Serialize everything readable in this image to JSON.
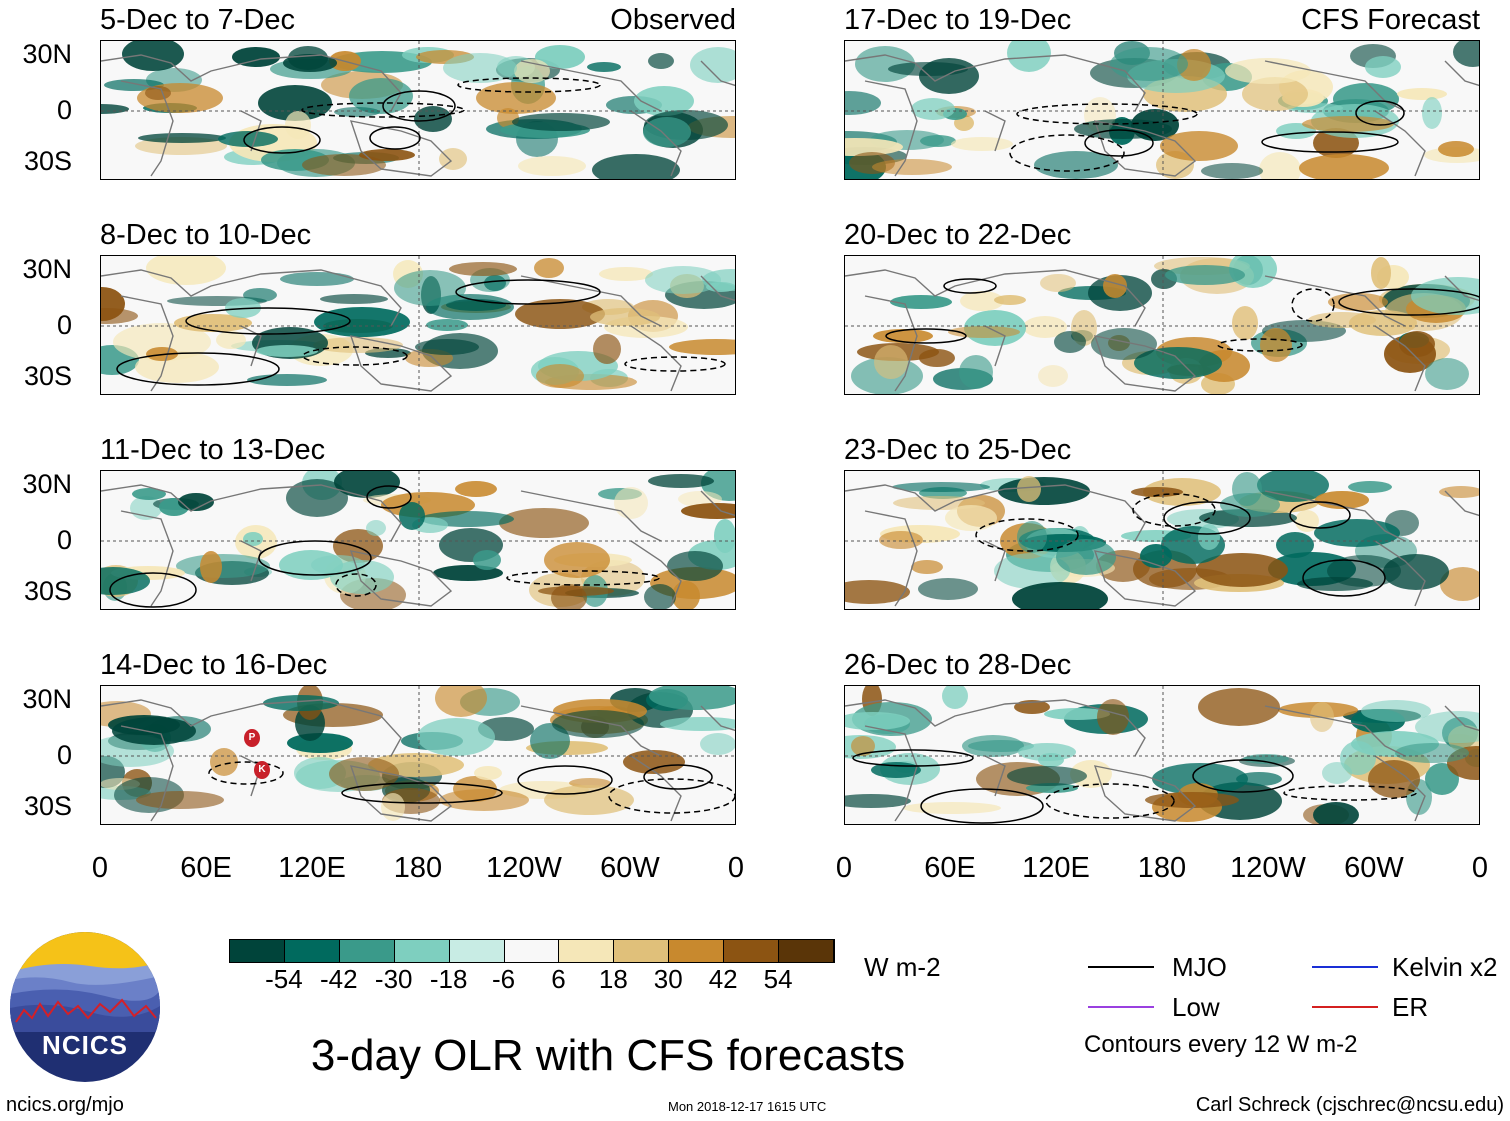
{
  "panels_left": [
    {
      "title": "5-Dec to 7-Dec",
      "tag": "Observed"
    },
    {
      "title": "8-Dec to 10-Dec",
      "tag": ""
    },
    {
      "title": "11-Dec to 13-Dec",
      "tag": ""
    },
    {
      "title": "14-Dec to 16-Dec",
      "tag": ""
    }
  ],
  "panels_right": [
    {
      "title": "17-Dec to 19-Dec",
      "tag": "CFS Forecast"
    },
    {
      "title": "20-Dec to 22-Dec",
      "tag": ""
    },
    {
      "title": "23-Dec to 25-Dec",
      "tag": ""
    },
    {
      "title": "26-Dec to 28-Dec",
      "tag": ""
    }
  ],
  "lat_labels": [
    "30N",
    "0",
    "30S"
  ],
  "lon_labels": [
    "0",
    "60E",
    "120E",
    "180",
    "120W",
    "60W",
    "0"
  ],
  "colorbar": {
    "unit": "W m-2",
    "labels": [
      "-54",
      "-42",
      "-30",
      "-18",
      "-6",
      "6",
      "18",
      "30",
      "42",
      "54"
    ],
    "colors": [
      "#00443a",
      "#006a5e",
      "#3a9a8a",
      "#7ecfbf",
      "#c8ece4",
      "#f8f8f8",
      "#f5e7b8",
      "#e0c07a",
      "#c8892e",
      "#8c5412",
      "#5a3508"
    ]
  },
  "legend": {
    "mjo": "MJO",
    "kelvin": "Kelvin x2",
    "low": "Low",
    "er": "ER",
    "note": "Contours every 12 W m-2",
    "colors": {
      "mjo": "#000000",
      "kelvin": "#1a2fd6",
      "low": "#9a40e0",
      "er": "#d42020"
    }
  },
  "main_title": "3-day OLR with CFS forecasts",
  "logo_text": "NCICS",
  "footer": {
    "left": "ncics.org/mjo",
    "center": "Mon 2018-12-17 1615 UTC",
    "right": "Carl Schreck (cjschrec@ncsu.edu)"
  },
  "markers": [
    {
      "letter": "P"
    },
    {
      "letter": "K"
    }
  ]
}
